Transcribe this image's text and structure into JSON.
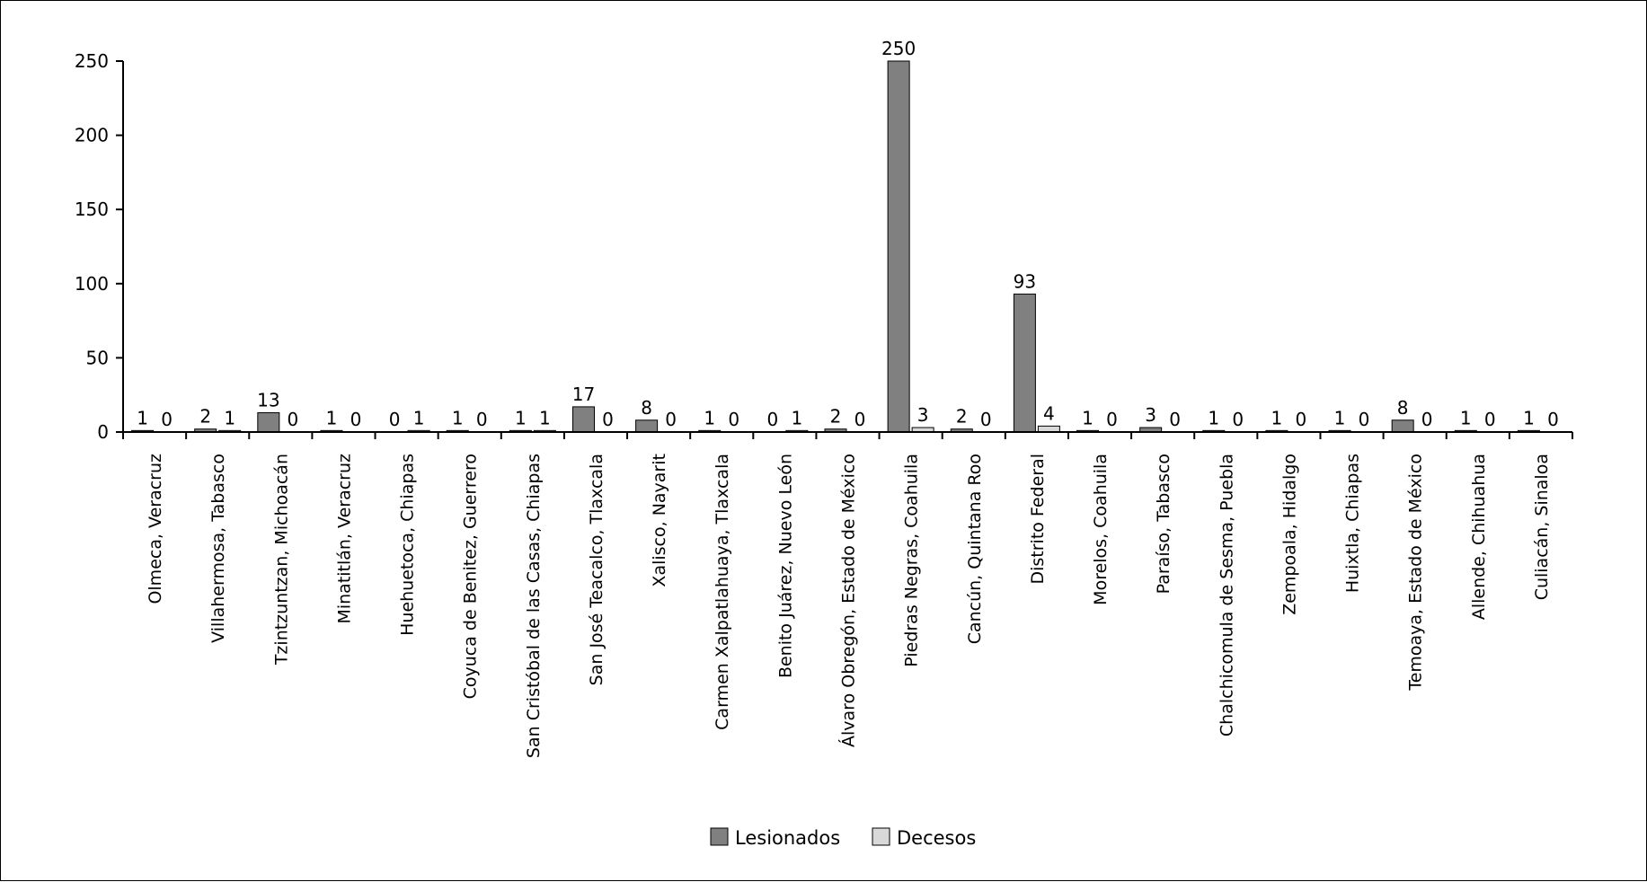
{
  "chart_data": {
    "type": "bar",
    "categories": [
      "Olmeca, Veracruz",
      "Villahermosa, Tabasco",
      "Tzintzuntzan, Michoacán",
      "Minatitlán, Veracruz",
      "Huehuetoca, Chiapas",
      "Coyuca de Benitez, Guerrero",
      "San Cristóbal de las Casas, Chiapas",
      "San José Teacalco, Tlaxcala",
      "Xalisco, Nayarit",
      "Carmen Xalpatlahuaya, Tlaxcala",
      "Benito Juárez, Nuevo León",
      "Álvaro Obregón, Estado de México",
      "Piedras Negras, Coahuila",
      "Cancún, Quintana Roo",
      "Distrito Federal",
      "Morelos, Coahuila",
      "Paraíso, Tabasco",
      "Chalchicomula de Sesma, Puebla",
      "Zempoala, Hidalgo",
      "Huixtla, Chiapas",
      "Temoaya, Estado de México",
      "Allende, Chihuahua",
      "Culiacán, Sinaloa"
    ],
    "series": [
      {
        "name": "Lesionados",
        "color": "#808080",
        "values": [
          1,
          2,
          13,
          1,
          0,
          1,
          1,
          17,
          8,
          1,
          0,
          2,
          250,
          2,
          93,
          1,
          3,
          1,
          1,
          1,
          8,
          1,
          1
        ]
      },
      {
        "name": "Decesos",
        "color": "#d9d9d9",
        "values": [
          0,
          1,
          0,
          0,
          1,
          0,
          1,
          0,
          0,
          0,
          1,
          0,
          3,
          0,
          4,
          0,
          0,
          0,
          0,
          0,
          0,
          0,
          0
        ]
      }
    ],
    "ylim": [
      0,
      250
    ],
    "yticks": [
      0,
      50,
      100,
      150,
      200,
      250
    ],
    "data_labels": true,
    "grid": false,
    "legend_position": "bottom"
  }
}
